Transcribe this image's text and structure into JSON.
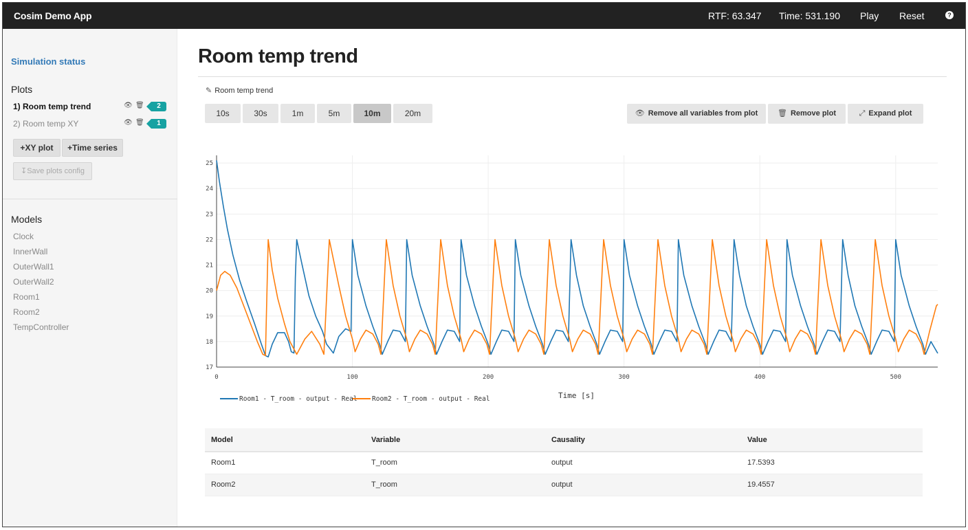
{
  "navbar": {
    "brand": "Cosim Demo App",
    "rtf": "RTF: 63.347",
    "time": "Time: 531.190",
    "play": "Play",
    "reset": "Reset",
    "help_icon": "?"
  },
  "sidebar": {
    "status_link": "Simulation status",
    "plots_heading": "Plots",
    "plots": [
      {
        "label": "1) Room temp trend",
        "count": "2"
      },
      {
        "label": "2) Room temp XY",
        "count": "1"
      }
    ],
    "xy_plot_button": "XY plot",
    "time_series_button": "Time series",
    "save_config_button": "Save plots config",
    "models_heading": "Models",
    "models": [
      "Clock",
      "InnerWall",
      "OuterWall1",
      "OuterWall2",
      "Room1",
      "Room2",
      "TempController"
    ]
  },
  "main": {
    "title": "Room temp trend",
    "plot_name": "Room temp trend",
    "ranges": [
      "10s",
      "30s",
      "1m",
      "5m",
      "10m",
      "20m"
    ],
    "selected_range": "10m",
    "remove_all_button": "Remove all variables from plot",
    "remove_plot_button": "Remove plot",
    "expand_plot_button": "Expand plot"
  },
  "chart_data": {
    "type": "line",
    "xlabel": "Time [s]",
    "ylabel": "",
    "xlim": [
      0,
      531
    ],
    "ylim": [
      17,
      25.3
    ],
    "xticks": [
      0,
      100,
      200,
      300,
      400,
      500
    ],
    "yticks": [
      17,
      18,
      19,
      20,
      21,
      22,
      23,
      24,
      25
    ],
    "grid": true,
    "legend_position": "bottom-left",
    "series": [
      {
        "name": "Room1 - T_room - output - Real",
        "color": "#1f77b4",
        "x": [
          0,
          2,
          5,
          8,
          12,
          17,
          22,
          28,
          33,
          36,
          38,
          41,
          45,
          50,
          53,
          55,
          57,
          58,
          59,
          63,
          68,
          73,
          78,
          81,
          86,
          90,
          95,
          99,
          100,
          104,
          110,
          115,
          120,
          122,
          126,
          130,
          135,
          139,
          140,
          144,
          150,
          155,
          160,
          162,
          166,
          170,
          175,
          179,
          180,
          184,
          190,
          195,
          200,
          202,
          206,
          210,
          215,
          219,
          220,
          224,
          230,
          235,
          240,
          242,
          246,
          250,
          255,
          259,
          261,
          265,
          270,
          275,
          280,
          282,
          286,
          290,
          295,
          299,
          300,
          304,
          310,
          315,
          320,
          322,
          326,
          330,
          335,
          339,
          340,
          344,
          350,
          355,
          360,
          362,
          366,
          370,
          375,
          379,
          381,
          385,
          390,
          395,
          400,
          402,
          406,
          410,
          415,
          419,
          420,
          424,
          430,
          435,
          440,
          442,
          446,
          450,
          455,
          459,
          461,
          465,
          470,
          475,
          480,
          482,
          486,
          490,
          495,
          499,
          500,
          504,
          510,
          515,
          520,
          522,
          526,
          531
        ],
        "y": [
          25.1,
          24.3,
          23.3,
          22.4,
          21.4,
          20.4,
          19.6,
          18.7,
          17.9,
          17.45,
          17.4,
          17.9,
          18.35,
          18.35,
          18.0,
          17.6,
          17.55,
          20.5,
          22.0,
          21.0,
          19.8,
          19.0,
          18.4,
          17.9,
          17.55,
          18.2,
          18.5,
          18.4,
          22.0,
          20.6,
          19.4,
          18.6,
          17.9,
          17.5,
          18.0,
          18.45,
          18.4,
          18.0,
          22.0,
          20.6,
          19.4,
          18.6,
          17.9,
          17.5,
          18.0,
          18.45,
          18.4,
          18.0,
          22.0,
          20.6,
          19.4,
          18.6,
          17.9,
          17.5,
          18.0,
          18.45,
          18.4,
          18.0,
          22.0,
          20.6,
          19.4,
          18.6,
          17.9,
          17.5,
          18.0,
          18.45,
          18.4,
          18.0,
          22.0,
          20.6,
          19.4,
          18.6,
          17.9,
          17.5,
          18.0,
          18.45,
          18.4,
          18.0,
          22.0,
          20.6,
          19.4,
          18.6,
          17.9,
          17.5,
          18.0,
          18.45,
          18.4,
          18.0,
          22.0,
          20.6,
          19.4,
          18.6,
          17.9,
          17.5,
          18.0,
          18.45,
          18.4,
          18.0,
          22.0,
          20.6,
          19.4,
          18.6,
          17.9,
          17.5,
          18.0,
          18.45,
          18.4,
          18.0,
          22.0,
          20.6,
          19.4,
          18.6,
          17.9,
          17.5,
          18.0,
          18.45,
          18.4,
          18.0,
          22.0,
          20.6,
          19.4,
          18.6,
          17.9,
          17.5,
          18.0,
          18.45,
          18.4,
          18.0,
          22.0,
          20.6,
          19.4,
          18.6,
          17.9,
          17.5,
          18.0,
          17.54
        ]
      },
      {
        "name": "Room2 - T_room - output - Real",
        "color": "#ff7f0e",
        "x": [
          0,
          3,
          6,
          10,
          15,
          20,
          25,
          30,
          34,
          36,
          38,
          41,
          45,
          50,
          54,
          59,
          65,
          70,
          76,
          79,
          83,
          90,
          95,
          100,
          102,
          106,
          110,
          115,
          119,
          121,
          125,
          130,
          135,
          140,
          142,
          146,
          150,
          155,
          159,
          161,
          165,
          170,
          175,
          180,
          182,
          186,
          190,
          195,
          199,
          201,
          205,
          210,
          215,
          220,
          222,
          226,
          230,
          235,
          239,
          241,
          245,
          250,
          255,
          260,
          262,
          266,
          270,
          275,
          279,
          281,
          285,
          290,
          295,
          300,
          302,
          306,
          310,
          315,
          319,
          321,
          325,
          330,
          335,
          340,
          342,
          346,
          350,
          355,
          359,
          361,
          365,
          370,
          375,
          380,
          382,
          386,
          390,
          395,
          399,
          401,
          405,
          410,
          415,
          420,
          422,
          426,
          430,
          435,
          439,
          441,
          445,
          450,
          455,
          460,
          462,
          466,
          470,
          475,
          479,
          481,
          485,
          490,
          495,
          500,
          502,
          506,
          510,
          515,
          519,
          521,
          525,
          530,
          531
        ],
        "y": [
          20.0,
          20.6,
          20.75,
          20.6,
          20.1,
          19.4,
          18.7,
          18.0,
          17.5,
          17.45,
          22.0,
          20.8,
          19.7,
          18.7,
          18.0,
          17.5,
          18.1,
          18.4,
          17.9,
          17.5,
          22.0,
          20.2,
          19.0,
          18.1,
          17.6,
          18.1,
          18.45,
          18.3,
          17.9,
          17.5,
          22.0,
          20.2,
          19.0,
          18.1,
          17.6,
          18.1,
          18.45,
          18.3,
          17.9,
          17.5,
          22.0,
          20.2,
          19.0,
          18.1,
          17.6,
          18.1,
          18.45,
          18.3,
          17.9,
          17.5,
          22.0,
          20.2,
          19.0,
          18.1,
          17.6,
          18.1,
          18.45,
          18.3,
          17.9,
          17.5,
          22.0,
          20.2,
          19.0,
          18.1,
          17.6,
          18.1,
          18.45,
          18.3,
          17.9,
          17.5,
          22.0,
          20.2,
          19.0,
          18.1,
          17.6,
          18.1,
          18.45,
          18.3,
          17.9,
          17.5,
          22.0,
          20.2,
          19.0,
          18.1,
          17.6,
          18.1,
          18.45,
          18.3,
          17.9,
          17.5,
          22.0,
          20.2,
          19.0,
          18.1,
          17.6,
          18.1,
          18.45,
          18.3,
          17.9,
          17.5,
          22.0,
          20.2,
          19.0,
          18.1,
          17.6,
          18.1,
          18.45,
          18.3,
          17.9,
          17.5,
          22.0,
          20.2,
          19.0,
          18.1,
          17.6,
          18.1,
          18.45,
          18.3,
          17.9,
          17.5,
          22.0,
          20.2,
          19.0,
          18.1,
          17.6,
          18.1,
          18.45,
          18.3,
          17.9,
          17.5,
          18.4,
          19.4,
          19.46
        ]
      }
    ]
  },
  "variables_table": {
    "headers": [
      "Model",
      "Variable",
      "Causality",
      "Value"
    ],
    "rows": [
      [
        "Room1",
        "T_room",
        "output",
        "17.5393"
      ],
      [
        "Room2",
        "T_room",
        "output",
        "19.4557"
      ]
    ]
  }
}
